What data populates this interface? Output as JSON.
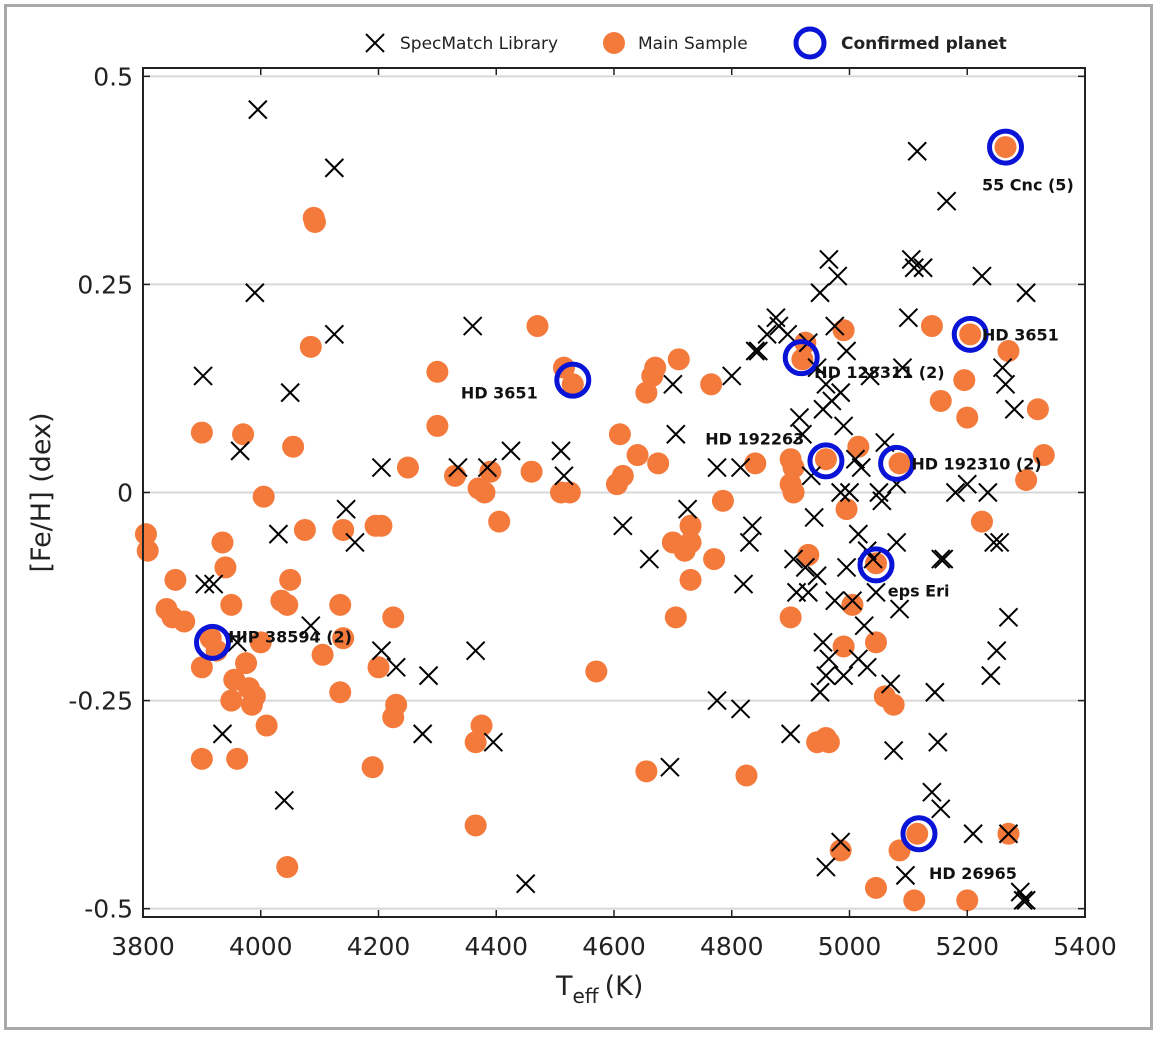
{
  "chart_data": {
    "type": "scatter",
    "title": "",
    "xlabel": "T",
    "xlabel_sub": "eff",
    "xlabel_unit": "(K)",
    "ylabel": "[Fe/H] (dex)",
    "xlim": [
      3800,
      5400
    ],
    "ylim": [
      -0.51,
      0.51
    ],
    "xticks": [
      "3800",
      "4000",
      "4200",
      "4400",
      "4600",
      "4800",
      "5000",
      "5200",
      "5400"
    ],
    "yticks": [
      "0.5",
      "0.25",
      "0",
      "-0.25",
      "-0.5"
    ],
    "ytick_values": [
      0.5,
      0.25,
      0,
      -0.25,
      -0.5
    ],
    "grid": "horizontal",
    "legend_position": "top",
    "colors": {
      "library": "#000000",
      "main": "#f47a3c",
      "planet": "#0a14d6"
    },
    "series": [
      {
        "name": "SpecMatch Library",
        "marker": "x",
        "points": [
          [
            3995,
            0.46
          ],
          [
            4125,
            0.39
          ],
          [
            3990,
            0.24
          ],
          [
            4125,
            0.19
          ],
          [
            3902,
            0.14
          ],
          [
            4050,
            0.12
          ],
          [
            3965,
            0.05
          ],
          [
            4205,
            0.03
          ],
          [
            4145,
            -0.02
          ],
          [
            4030,
            -0.05
          ],
          [
            4160,
            -0.06
          ],
          [
            3905,
            -0.11
          ],
          [
            3920,
            -0.11
          ],
          [
            4085,
            -0.16
          ],
          [
            3960,
            -0.18
          ],
          [
            4205,
            -0.19
          ],
          [
            4230,
            -0.21
          ],
          [
            4285,
            -0.22
          ],
          [
            3935,
            -0.29
          ],
          [
            4275,
            -0.29
          ],
          [
            4040,
            -0.37
          ],
          [
            4360,
            0.2
          ],
          [
            4335,
            0.03
          ],
          [
            4385,
            0.03
          ],
          [
            4425,
            0.05
          ],
          [
            4510,
            0.05
          ],
          [
            4515,
            0.02
          ],
          [
            4365,
            -0.19
          ],
          [
            4395,
            -0.3
          ],
          [
            4450,
            -0.47
          ],
          [
            4615,
            -0.04
          ],
          [
            4660,
            -0.08
          ],
          [
            4700,
            0.13
          ],
          [
            4705,
            0.07
          ],
          [
            4725,
            -0.02
          ],
          [
            4695,
            -0.33
          ],
          [
            4800,
            0.14
          ],
          [
            4775,
            0.03
          ],
          [
            4815,
            0.03
          ],
          [
            4775,
            -0.25
          ],
          [
            4815,
            -0.26
          ],
          [
            4830,
            -0.06
          ],
          [
            4835,
            -0.04
          ],
          [
            4820,
            -0.11
          ],
          [
            4840,
            0.17
          ],
          [
            4845,
            0.17
          ],
          [
            4860,
            0.19
          ],
          [
            4875,
            0.21
          ],
          [
            4880,
            0.2
          ],
          [
            4895,
            0.19
          ],
          [
            4900,
            -0.29
          ],
          [
            4905,
            -0.08
          ],
          [
            4910,
            -0.12
          ],
          [
            4915,
            0.09
          ],
          [
            4920,
            0.07
          ],
          [
            4930,
            0.18
          ],
          [
            4940,
            -0.03
          ],
          [
            4945,
            -0.1
          ],
          [
            4950,
            0.24
          ],
          [
            4955,
            0.1
          ],
          [
            4960,
            0.13
          ],
          [
            4965,
            0.28
          ],
          [
            4970,
            0.11
          ],
          [
            4975,
            0.2
          ],
          [
            4980,
            0.26
          ],
          [
            4985,
            0.12
          ],
          [
            4990,
            0.08
          ],
          [
            4995,
            0.17
          ],
          [
            5000,
            0.0
          ],
          [
            5005,
            -0.13
          ],
          [
            5010,
            0.04
          ],
          [
            5015,
            -0.05
          ],
          [
            5020,
            0.03
          ],
          [
            5025,
            -0.16
          ],
          [
            5030,
            -0.21
          ],
          [
            5035,
            0.14
          ],
          [
            5040,
            -0.08
          ],
          [
            5045,
            -0.12
          ],
          [
            5050,
            0.0
          ],
          [
            5055,
            -0.01
          ],
          [
            5060,
            0.06
          ],
          [
            5070,
            -0.23
          ],
          [
            5075,
            -0.31
          ],
          [
            5080,
            -0.06
          ],
          [
            5085,
            -0.14
          ],
          [
            5090,
            0.15
          ],
          [
            5095,
            -0.46
          ],
          [
            5100,
            0.21
          ],
          [
            5105,
            0.28
          ],
          [
            5110,
            0.27
          ],
          [
            5115,
            0.41
          ],
          [
            5125,
            0.27
          ],
          [
            5140,
            -0.36
          ],
          [
            5145,
            -0.24
          ],
          [
            5150,
            -0.3
          ],
          [
            5155,
            -0.38
          ],
          [
            5160,
            -0.08
          ],
          [
            5165,
            0.35
          ],
          [
            5180,
            0.0
          ],
          [
            5200,
            0.01
          ],
          [
            5210,
            -0.41
          ],
          [
            5225,
            0.26
          ],
          [
            5235,
            0.0
          ],
          [
            5240,
            -0.22
          ],
          [
            5245,
            -0.06
          ],
          [
            5250,
            -0.19
          ],
          [
            5255,
            -0.06
          ],
          [
            5260,
            0.15
          ],
          [
            5265,
            0.13
          ],
          [
            5270,
            -0.15
          ],
          [
            5280,
            0.1
          ],
          [
            5290,
            -0.48
          ],
          [
            5295,
            -0.49
          ],
          [
            5300,
            0.24
          ],
          [
            4960,
            -0.22
          ],
          [
            4955,
            -0.18
          ],
          [
            4945,
            0.15
          ],
          [
            4950,
            -0.24
          ],
          [
            4965,
            -0.2
          ],
          [
            4975,
            -0.13
          ],
          [
            4985,
            0.0
          ],
          [
            4990,
            -0.22
          ],
          [
            4995,
            -0.09
          ],
          [
            5015,
            -0.2
          ],
          [
            5030,
            -0.07
          ],
          [
            4925,
            -0.09
          ],
          [
            4930,
            -0.12
          ],
          [
            4935,
            0.02
          ],
          [
            4985,
            -0.42
          ],
          [
            4960,
            -0.45
          ],
          [
            5270,
            -0.41
          ],
          [
            5300,
            -0.49
          ],
          [
            5155,
            -0.08
          ],
          [
            5080,
            0.01
          ]
        ]
      },
      {
        "name": "Main Sample",
        "marker": "circle",
        "points": [
          [
            4090,
            0.33
          ],
          [
            4092,
            0.325
          ],
          [
            4085,
            0.175
          ],
          [
            4300,
            0.145
          ],
          [
            4300,
            0.08
          ],
          [
            4470,
            0.2
          ],
          [
            4515,
            0.15
          ],
          [
            4530,
            0.13
          ],
          [
            4655,
            0.12
          ],
          [
            4665,
            0.14
          ],
          [
            4670,
            0.15
          ],
          [
            4710,
            0.16
          ],
          [
            4765,
            0.13
          ],
          [
            4610,
            0.07
          ],
          [
            4640,
            0.045
          ],
          [
            4675,
            0.035
          ],
          [
            4605,
            0.01
          ],
          [
            4615,
            0.02
          ],
          [
            4510,
            0.0
          ],
          [
            4525,
            0.0
          ],
          [
            4460,
            0.025
          ],
          [
            4390,
            0.025
          ],
          [
            4370,
            0.005
          ],
          [
            4380,
            0.0
          ],
          [
            4405,
            -0.035
          ],
          [
            4330,
            0.02
          ],
          [
            4250,
            0.03
          ],
          [
            4055,
            0.055
          ],
          [
            4005,
            -0.005
          ],
          [
            3900,
            0.072
          ],
          [
            3970,
            0.07
          ],
          [
            3805,
            -0.05
          ],
          [
            3808,
            -0.07
          ],
          [
            3855,
            -0.105
          ],
          [
            3840,
            -0.14
          ],
          [
            3850,
            -0.15
          ],
          [
            3870,
            -0.155
          ],
          [
            3935,
            -0.06
          ],
          [
            3940,
            -0.09
          ],
          [
            3950,
            -0.135
          ],
          [
            3915,
            -0.175
          ],
          [
            3925,
            -0.19
          ],
          [
            3900,
            -0.21
          ],
          [
            3955,
            -0.225
          ],
          [
            3975,
            -0.205
          ],
          [
            3980,
            -0.235
          ],
          [
            3990,
            -0.245
          ],
          [
            3985,
            -0.255
          ],
          [
            3950,
            -0.25
          ],
          [
            4000,
            -0.18
          ],
          [
            4010,
            -0.28
          ],
          [
            3960,
            -0.32
          ],
          [
            3900,
            -0.32
          ],
          [
            4035,
            -0.13
          ],
          [
            4045,
            -0.135
          ],
          [
            4050,
            -0.105
          ],
          [
            4075,
            -0.045
          ],
          [
            4105,
            -0.195
          ],
          [
            4140,
            -0.045
          ],
          [
            4135,
            -0.135
          ],
          [
            4140,
            -0.175
          ],
          [
            4135,
            -0.24
          ],
          [
            4195,
            -0.04
          ],
          [
            4205,
            -0.04
          ],
          [
            4225,
            -0.15
          ],
          [
            4200,
            -0.21
          ],
          [
            4230,
            -0.255
          ],
          [
            4225,
            -0.27
          ],
          [
            4190,
            -0.33
          ],
          [
            4045,
            -0.45
          ],
          [
            4365,
            -0.4
          ],
          [
            4365,
            -0.3
          ],
          [
            4375,
            -0.28
          ],
          [
            4570,
            -0.215
          ],
          [
            4655,
            -0.335
          ],
          [
            4705,
            -0.15
          ],
          [
            4700,
            -0.06
          ],
          [
            4730,
            -0.04
          ],
          [
            4730,
            -0.06
          ],
          [
            4720,
            -0.07
          ],
          [
            4730,
            -0.105
          ],
          [
            4770,
            -0.08
          ],
          [
            4785,
            -0.01
          ],
          [
            4825,
            -0.34
          ],
          [
            4840,
            0.035
          ],
          [
            4900,
            0.04
          ],
          [
            4905,
            0.03
          ],
          [
            4900,
            0.01
          ],
          [
            4905,
            0.0
          ],
          [
            4925,
            0.18
          ],
          [
            4920,
            0.16
          ],
          [
            4930,
            -0.075
          ],
          [
            4900,
            -0.15
          ],
          [
            4945,
            -0.3
          ],
          [
            4960,
            -0.295
          ],
          [
            4960,
            0.04
          ],
          [
            4990,
            0.195
          ],
          [
            5015,
            0.055
          ],
          [
            4995,
            -0.02
          ],
          [
            5005,
            -0.135
          ],
          [
            4990,
            -0.185
          ],
          [
            5045,
            -0.085
          ],
          [
            5045,
            -0.18
          ],
          [
            5060,
            -0.245
          ],
          [
            5075,
            -0.255
          ],
          [
            5085,
            0.035
          ],
          [
            5085,
            -0.43
          ],
          [
            5110,
            -0.49
          ],
          [
            5115,
            -0.41
          ],
          [
            5140,
            0.2
          ],
          [
            5155,
            0.11
          ],
          [
            5195,
            0.135
          ],
          [
            5200,
            0.09
          ],
          [
            5205,
            0.19
          ],
          [
            5225,
            -0.035
          ],
          [
            5265,
            0.415
          ],
          [
            5270,
            0.17
          ],
          [
            5270,
            -0.41
          ],
          [
            5300,
            0.015
          ],
          [
            5320,
            0.1
          ],
          [
            5330,
            0.045
          ],
          [
            5200,
            -0.49
          ],
          [
            5045,
            -0.475
          ],
          [
            4985,
            -0.43
          ],
          [
            4965,
            -0.3
          ]
        ]
      },
      {
        "name": "Confirmed planet",
        "marker": "ring",
        "points": [
          [
            3918,
            -0.18
          ],
          [
            4530,
            0.135
          ],
          [
            4918,
            0.162
          ],
          [
            4960,
            0.038
          ],
          [
            5080,
            0.035
          ],
          [
            5045,
            -0.087
          ],
          [
            5118,
            -0.41
          ],
          [
            5205,
            0.19
          ],
          [
            5265,
            0.415
          ]
        ]
      }
    ],
    "annotations": [
      {
        "text": "55 Cnc (5)",
        "x": 5225,
        "y": 0.37
      },
      {
        "text": "HD 3651",
        "x": 5225,
        "y": 0.19
      },
      {
        "text": "HD 3651",
        "x": 4340,
        "y": 0.12
      },
      {
        "text": "HD 128311 (2)",
        "x": 4940,
        "y": 0.145
      },
      {
        "text": "HD 192263",
        "x": 4755,
        "y": 0.065
      },
      {
        "text": "HD 192310 (2)",
        "x": 5105,
        "y": 0.035
      },
      {
        "text": "eps Eri",
        "x": 5065,
        "y": -0.118
      },
      {
        "text": "HIP 38594 (2)",
        "x": 3945,
        "y": -0.173
      },
      {
        "text": "HD 26965",
        "x": 5135,
        "y": -0.457
      }
    ]
  }
}
